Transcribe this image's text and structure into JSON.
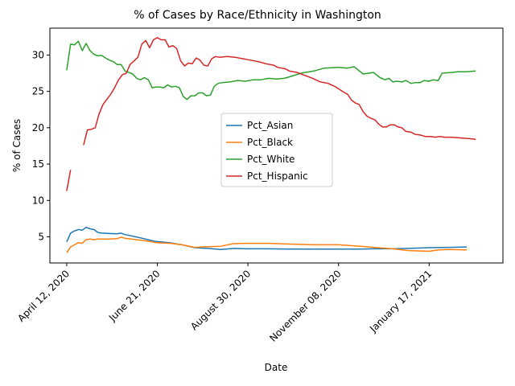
{
  "chart_data": {
    "type": "line",
    "title": "% of Cases by Race/Ethnicity in Washington",
    "xlabel": "Date",
    "ylabel": "% of Cases",
    "ylim": [
      1.4,
      33.7
    ],
    "xlim": [
      "2020-03-30",
      "2021-03-15"
    ],
    "x_ticks": [
      {
        "date": "2020-04-12",
        "label": "April 12, 2020"
      },
      {
        "date": "2020-06-21",
        "label": "June 21, 2020"
      },
      {
        "date": "2020-08-30",
        "label": "August 30, 2020"
      },
      {
        "date": "2020-11-08",
        "label": "November 08, 2020"
      },
      {
        "date": "2021-01-17",
        "label": "January 17, 2021"
      }
    ],
    "y_ticks": [
      5,
      10,
      15,
      20,
      25,
      30
    ],
    "legend_position": "center",
    "series": [
      {
        "name": "Pct_Asian",
        "color": "#1f77b4",
        "points": [
          [
            "2020-04-12",
            4.3
          ],
          [
            "2020-04-15",
            5.5
          ],
          [
            "2020-04-18",
            5.8
          ],
          [
            "2020-04-21",
            6.0
          ],
          [
            "2020-04-24",
            5.9
          ],
          [
            "2020-04-27",
            6.3
          ],
          [
            "2020-04-30",
            6.1
          ],
          [
            "2020-05-03",
            6.0
          ],
          [
            "2020-05-06",
            5.6
          ],
          [
            "2020-05-09",
            5.5
          ],
          [
            "2020-05-15",
            5.45
          ],
          [
            "2020-05-21",
            5.4
          ],
          [
            "2020-05-24",
            5.5
          ],
          [
            "2020-05-27",
            5.3
          ],
          [
            "2020-06-02",
            5.1
          ],
          [
            "2020-06-08",
            4.85
          ],
          [
            "2020-06-14",
            4.6
          ],
          [
            "2020-06-20",
            4.35
          ],
          [
            "2020-06-30",
            4.2
          ],
          [
            "2020-07-10",
            3.9
          ],
          [
            "2020-07-20",
            3.5
          ],
          [
            "2020-07-30",
            3.4
          ],
          [
            "2020-08-09",
            3.25
          ],
          [
            "2020-08-19",
            3.4
          ],
          [
            "2020-08-29",
            3.35
          ],
          [
            "2020-09-15",
            3.35
          ],
          [
            "2020-10-01",
            3.3
          ],
          [
            "2020-10-20",
            3.3
          ],
          [
            "2020-11-08",
            3.3
          ],
          [
            "2020-11-25",
            3.3
          ],
          [
            "2020-12-05",
            3.35
          ],
          [
            "2020-12-20",
            3.35
          ],
          [
            "2021-01-01",
            3.4
          ],
          [
            "2021-01-17",
            3.5
          ],
          [
            "2021-02-01",
            3.55
          ],
          [
            "2021-02-15",
            3.6
          ]
        ]
      },
      {
        "name": "Pct_Black",
        "color": "#ff7f0e",
        "points": [
          [
            "2020-04-12",
            2.8
          ],
          [
            "2020-04-15",
            3.6
          ],
          [
            "2020-04-18",
            3.9
          ],
          [
            "2020-04-21",
            4.2
          ],
          [
            "2020-04-24",
            4.1
          ],
          [
            "2020-04-27",
            4.6
          ],
          [
            "2020-04-30",
            4.7
          ],
          [
            "2020-05-03",
            4.6
          ],
          [
            "2020-05-06",
            4.7
          ],
          [
            "2020-05-15",
            4.7
          ],
          [
            "2020-05-21",
            4.75
          ],
          [
            "2020-05-24",
            4.95
          ],
          [
            "2020-05-27",
            4.8
          ],
          [
            "2020-06-05",
            4.6
          ],
          [
            "2020-06-14",
            4.4
          ],
          [
            "2020-06-20",
            4.2
          ],
          [
            "2020-07-01",
            4.1
          ],
          [
            "2020-07-10",
            3.9
          ],
          [
            "2020-07-20",
            3.55
          ],
          [
            "2020-07-30",
            3.65
          ],
          [
            "2020-08-09",
            3.7
          ],
          [
            "2020-08-19",
            4.05
          ],
          [
            "2020-08-29",
            4.1
          ],
          [
            "2020-09-15",
            4.1
          ],
          [
            "2020-10-01",
            4.0
          ],
          [
            "2020-10-20",
            3.9
          ],
          [
            "2020-11-08",
            3.9
          ],
          [
            "2020-11-25",
            3.7
          ],
          [
            "2020-12-05",
            3.55
          ],
          [
            "2020-12-20",
            3.35
          ],
          [
            "2021-01-01",
            3.1
          ],
          [
            "2021-01-17",
            3.0
          ],
          [
            "2021-01-24",
            3.2
          ],
          [
            "2021-02-01",
            3.25
          ],
          [
            "2021-02-15",
            3.2
          ]
        ]
      },
      {
        "name": "Pct_White",
        "color": "#2ca02c",
        "points": [
          [
            "2020-04-12",
            27.9
          ],
          [
            "2020-04-15",
            31.5
          ],
          [
            "2020-04-18",
            31.4
          ],
          [
            "2020-04-21",
            31.9
          ],
          [
            "2020-04-24",
            30.6
          ],
          [
            "2020-04-27",
            31.6
          ],
          [
            "2020-04-30",
            30.6
          ],
          [
            "2020-05-03",
            30.1
          ],
          [
            "2020-05-06",
            29.9
          ],
          [
            "2020-05-09",
            29.95
          ],
          [
            "2020-05-12",
            29.6
          ],
          [
            "2020-05-15",
            29.3
          ],
          [
            "2020-05-18",
            29.1
          ],
          [
            "2020-05-21",
            28.7
          ],
          [
            "2020-05-24",
            28.7
          ],
          [
            "2020-05-27",
            27.8
          ],
          [
            "2020-05-30",
            27.6
          ],
          [
            "2020-06-02",
            27.4
          ],
          [
            "2020-06-05",
            26.8
          ],
          [
            "2020-06-08",
            26.6
          ],
          [
            "2020-06-11",
            26.9
          ],
          [
            "2020-06-14",
            26.6
          ],
          [
            "2020-06-17",
            25.5
          ],
          [
            "2020-06-20",
            25.6
          ],
          [
            "2020-06-23",
            25.6
          ],
          [
            "2020-06-26",
            25.5
          ],
          [
            "2020-06-29",
            25.9
          ],
          [
            "2020-07-02",
            25.6
          ],
          [
            "2020-07-05",
            25.7
          ],
          [
            "2020-07-08",
            25.5
          ],
          [
            "2020-07-11",
            24.3
          ],
          [
            "2020-07-14",
            23.9
          ],
          [
            "2020-07-17",
            24.4
          ],
          [
            "2020-07-20",
            24.4
          ],
          [
            "2020-07-23",
            24.8
          ],
          [
            "2020-07-26",
            24.8
          ],
          [
            "2020-07-29",
            24.4
          ],
          [
            "2020-08-01",
            24.5
          ],
          [
            "2020-08-04",
            25.7
          ],
          [
            "2020-08-07",
            26.1
          ],
          [
            "2020-08-10",
            26.2
          ],
          [
            "2020-08-16",
            26.3
          ],
          [
            "2020-08-22",
            26.5
          ],
          [
            "2020-08-28",
            26.4
          ],
          [
            "2020-09-03",
            26.6
          ],
          [
            "2020-09-09",
            26.6
          ],
          [
            "2020-09-15",
            26.8
          ],
          [
            "2020-09-21",
            26.7
          ],
          [
            "2020-09-27",
            26.8
          ],
          [
            "2020-10-01",
            27.0
          ],
          [
            "2020-10-10",
            27.5
          ],
          [
            "2020-10-20",
            27.8
          ],
          [
            "2020-10-28",
            28.2
          ],
          [
            "2020-11-08",
            28.3
          ],
          [
            "2020-11-15",
            28.2
          ],
          [
            "2020-11-20",
            28.4
          ],
          [
            "2020-11-27",
            27.4
          ],
          [
            "2020-12-05",
            27.6
          ],
          [
            "2020-12-10",
            26.9
          ],
          [
            "2020-12-14",
            26.6
          ],
          [
            "2020-12-17",
            26.8
          ],
          [
            "2020-12-20",
            26.3
          ],
          [
            "2020-12-23",
            26.4
          ],
          [
            "2020-12-27",
            26.3
          ],
          [
            "2020-12-30",
            26.5
          ],
          [
            "2021-01-03",
            26.1
          ],
          [
            "2021-01-06",
            26.2
          ],
          [
            "2021-01-10",
            26.2
          ],
          [
            "2021-01-13",
            26.5
          ],
          [
            "2021-01-17",
            26.4
          ],
          [
            "2021-01-20",
            26.6
          ],
          [
            "2021-01-24",
            26.5
          ],
          [
            "2021-01-27",
            27.5
          ],
          [
            "2021-02-03",
            27.6
          ],
          [
            "2021-02-08",
            27.7
          ],
          [
            "2021-02-15",
            27.7
          ],
          [
            "2021-02-22",
            27.8
          ]
        ]
      },
      {
        "name": "Pct_Hispanic",
        "color": "#d62728",
        "segments": [
          [
            [
              "2020-04-12",
              11.3
            ],
            [
              "2020-04-15",
              14.2
            ]
          ],
          [
            [
              "2020-04-25",
              17.6
            ],
            [
              "2020-04-28",
              19.7
            ],
            [
              "2020-05-01",
              19.8
            ],
            [
              "2020-05-04",
              20.0
            ],
            [
              "2020-05-07",
              21.9
            ],
            [
              "2020-05-10",
              23.2
            ],
            [
              "2020-05-13",
              23.9
            ],
            [
              "2020-05-16",
              24.6
            ],
            [
              "2020-05-19",
              25.5
            ],
            [
              "2020-05-22",
              26.6
            ],
            [
              "2020-05-25",
              27.3
            ],
            [
              "2020-05-28",
              27.5
            ],
            [
              "2020-05-31",
              28.7
            ],
            [
              "2020-06-03",
              29.2
            ],
            [
              "2020-06-06",
              29.7
            ],
            [
              "2020-06-09",
              31.5
            ],
            [
              "2020-06-12",
              32.0
            ],
            [
              "2020-06-15",
              31.0
            ],
            [
              "2020-06-18",
              32.1
            ],
            [
              "2020-06-21",
              32.4
            ],
            [
              "2020-06-24",
              32.1
            ],
            [
              "2020-06-27",
              32.1
            ],
            [
              "2020-06-30",
              31.1
            ],
            [
              "2020-07-03",
              31.3
            ],
            [
              "2020-07-06",
              30.9
            ],
            [
              "2020-07-09",
              29.2
            ],
            [
              "2020-07-12",
              28.5
            ],
            [
              "2020-07-15",
              28.9
            ],
            [
              "2020-07-18",
              28.8
            ],
            [
              "2020-07-21",
              29.6
            ],
            [
              "2020-07-24",
              29.3
            ],
            [
              "2020-07-27",
              28.6
            ],
            [
              "2020-07-30",
              28.5
            ],
            [
              "2020-08-02",
              29.5
            ],
            [
              "2020-08-05",
              29.8
            ],
            [
              "2020-08-08",
              29.7
            ],
            [
              "2020-08-14",
              29.8
            ],
            [
              "2020-08-20",
              29.7
            ],
            [
              "2020-08-26",
              29.5
            ],
            [
              "2020-09-01",
              29.3
            ],
            [
              "2020-09-07",
              29.1
            ],
            [
              "2020-09-13",
              28.8
            ],
            [
              "2020-09-19",
              28.6
            ],
            [
              "2020-09-22",
              28.3
            ],
            [
              "2020-09-28",
              28.1
            ],
            [
              "2020-10-01",
              27.8
            ],
            [
              "2020-10-07",
              27.6
            ],
            [
              "2020-10-13",
              27.2
            ],
            [
              "2020-10-19",
              26.8
            ],
            [
              "2020-10-25",
              26.3
            ],
            [
              "2020-10-31",
              26.1
            ],
            [
              "2020-11-06",
              25.6
            ],
            [
              "2020-11-12",
              24.9
            ],
            [
              "2020-11-15",
              24.6
            ],
            [
              "2020-11-18",
              23.8
            ],
            [
              "2020-11-21",
              23.4
            ],
            [
              "2020-11-24",
              23.2
            ],
            [
              "2020-11-27",
              22.2
            ],
            [
              "2020-11-30",
              21.6
            ],
            [
              "2020-12-03",
              21.3
            ],
            [
              "2020-12-06",
              21.1
            ],
            [
              "2020-12-09",
              20.5
            ],
            [
              "2020-12-12",
              20.1
            ],
            [
              "2020-12-15",
              20.1
            ],
            [
              "2020-12-18",
              20.4
            ],
            [
              "2020-12-21",
              20.4
            ],
            [
              "2020-12-24",
              20.1
            ],
            [
              "2020-12-27",
              20.0
            ],
            [
              "2020-12-30",
              19.5
            ],
            [
              "2021-01-03",
              19.4
            ],
            [
              "2021-01-06",
              19.1
            ],
            [
              "2021-01-10",
              19.0
            ],
            [
              "2021-01-14",
              18.8
            ],
            [
              "2021-01-18",
              18.8
            ],
            [
              "2021-01-22",
              18.7
            ],
            [
              "2021-01-25",
              18.8
            ],
            [
              "2021-01-29",
              18.7
            ],
            [
              "2021-02-03",
              18.7
            ],
            [
              "2021-02-10",
              18.6
            ],
            [
              "2021-02-17",
              18.5
            ],
            [
              "2021-02-22",
              18.4
            ]
          ]
        ]
      }
    ]
  }
}
